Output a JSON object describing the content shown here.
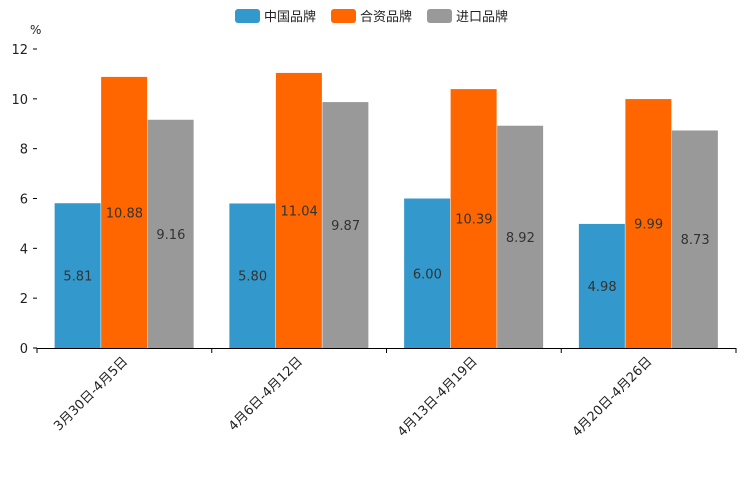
{
  "chart_data": {
    "type": "bar",
    "title": "",
    "xlabel": "",
    "ylabel": "%",
    "ylim": [
      0,
      12
    ],
    "yticks": [
      0,
      2,
      4,
      6,
      8,
      10,
      12
    ],
    "grid": false,
    "legend_position": "top-center",
    "categories": [
      "3月30日-4月5日",
      "4月6日-4月12日",
      "4月13日-4月19日",
      "4月20日-4月26日"
    ],
    "series": [
      {
        "name": "中国品牌",
        "color": "#3399cc",
        "values": [
          5.81,
          5.8,
          6.0,
          4.98
        ]
      },
      {
        "name": "合资品牌",
        "color": "#ff6600",
        "values": [
          10.88,
          11.04,
          10.39,
          9.99
        ]
      },
      {
        "name": "进口品牌",
        "color": "#999999",
        "values": [
          9.16,
          9.87,
          8.92,
          8.73
        ]
      }
    ],
    "data_labels": [
      [
        "5.81",
        "5.80",
        "6.00",
        "4.98"
      ],
      [
        "10.88",
        "11.04",
        "10.39",
        "9.99"
      ],
      [
        "9.16",
        "9.87",
        "8.92",
        "8.73"
      ]
    ]
  }
}
